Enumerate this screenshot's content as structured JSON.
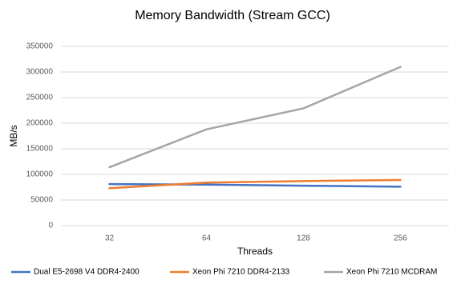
{
  "chart_data": {
    "type": "line",
    "title": "Memory Bandwidth (Stream GCC)",
    "x_label": "Threads",
    "y_label": "MB/s",
    "categories": [
      "32",
      "64",
      "128",
      "256"
    ],
    "series": [
      {
        "name": "Dual E5-2698 V4 DDR4-2400",
        "color": "#4472c4",
        "values": [
          81000,
          80000,
          78000,
          76000
        ]
      },
      {
        "name": "Xeon Phi 7210 DDR4-2133",
        "color": "#ed7d31",
        "values": [
          73000,
          84000,
          87000,
          89000
        ]
      },
      {
        "name": "Xeon Phi 7210 MCDRAM",
        "color": "#a5a5a5",
        "values": [
          114000,
          188000,
          229000,
          310000
        ]
      }
    ],
    "ylim": [
      0,
      350000
    ],
    "yticks": [
      0,
      50000,
      100000,
      150000,
      200000,
      250000,
      300000,
      350000
    ],
    "grid": true,
    "legend": "bottom"
  }
}
